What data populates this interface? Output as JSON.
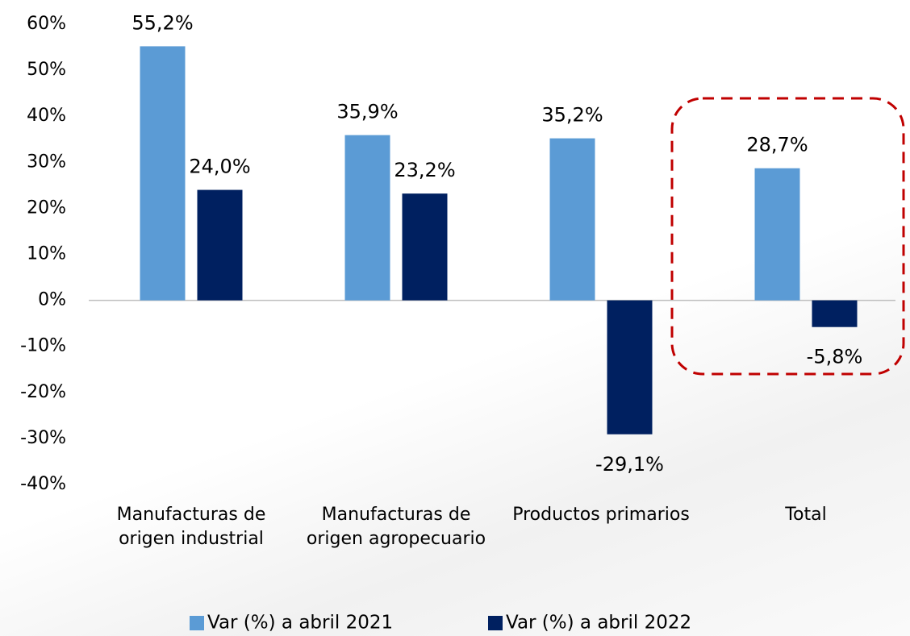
{
  "chart_data": {
    "type": "bar",
    "categories": [
      "Manufacturas de origen industrial",
      "Manufacturas de origen agropecuario",
      "Productos primarios",
      "Total"
    ],
    "series": [
      {
        "name": "Var (%) a abril 2021",
        "color": "#5b9bd5",
        "values": [
          55.2,
          35.9,
          35.2,
          28.7
        ],
        "value_labels": [
          "55,2%",
          "35,9%",
          "35,2%",
          "28,7%"
        ]
      },
      {
        "name": "Var (%) a abril 2022",
        "color": "#002060",
        "values": [
          24.0,
          23.2,
          -29.1,
          -5.8
        ],
        "value_labels": [
          "24,0%",
          "23,2%",
          "-29,1%",
          "-5,8%"
        ]
      }
    ],
    "ylim": [
      -40,
      60
    ],
    "yticks": [
      {
        "value": -40,
        "label": "-40%"
      },
      {
        "value": -30,
        "label": "-30%"
      },
      {
        "value": -20,
        "label": "-20%"
      },
      {
        "value": -10,
        "label": "-10%"
      },
      {
        "value": 0,
        "label": "0%"
      },
      {
        "value": 10,
        "label": "10%"
      },
      {
        "value": 20,
        "label": "20%"
      },
      {
        "value": 30,
        "label": "30%"
      },
      {
        "value": 40,
        "label": "40%"
      },
      {
        "value": 50,
        "label": "50%"
      },
      {
        "value": 60,
        "label": "60%"
      }
    ],
    "legend": "bottom"
  }
}
